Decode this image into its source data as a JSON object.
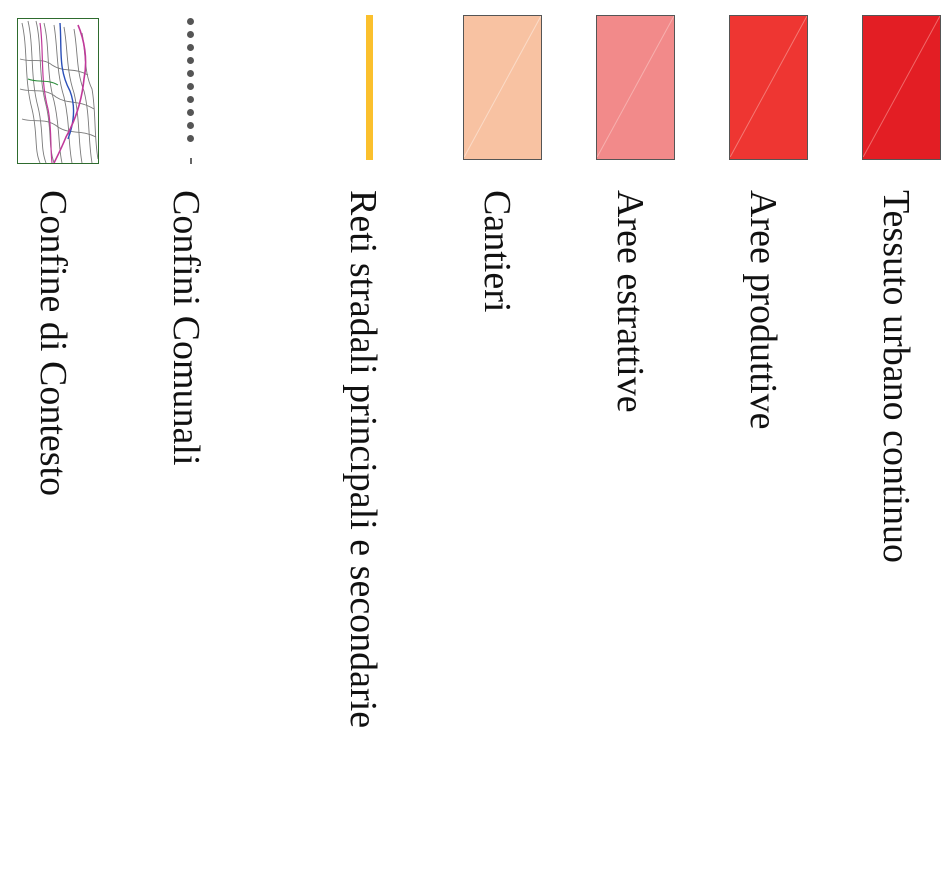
{
  "legend": {
    "items": [
      {
        "label": "Tessuto urbano continuo",
        "color": "#E31E24",
        "icon": "solid-fill-swatch"
      },
      {
        "label": "Aree produttive",
        "color": "#EE3632",
        "icon": "solid-fill-swatch"
      },
      {
        "label": "Aree estrattive",
        "color": "#F28A8A",
        "icon": "solid-fill-swatch"
      },
      {
        "label": "Cantieri",
        "color": "#F8C2A2",
        "icon": "solid-fill-swatch"
      },
      {
        "label": "Reti stradali principali e secondarie",
        "color": "#FBC02D",
        "icon": "line-swatch"
      },
      {
        "label": "Confini Comunali",
        "color": "#555555",
        "icon": "dotted-line-swatch"
      },
      {
        "label": "Confine di Contesto",
        "color": "#2E6B2E",
        "icon": "map-thumbnail"
      }
    ]
  }
}
